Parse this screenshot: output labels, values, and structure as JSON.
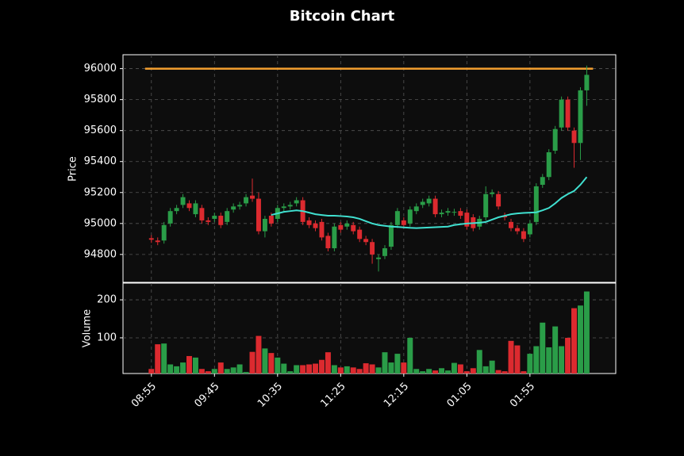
{
  "chart_data": {
    "type": "candlestick",
    "title": "Bitcoin Chart",
    "ylabel": "Price",
    "ylim": [
      94620,
      96090
    ],
    "yticks": [
      94800,
      95000,
      95200,
      95400,
      95600,
      95800,
      96000
    ],
    "xlim": [
      -4.5,
      73.6
    ],
    "xticks": [
      {
        "value": 0,
        "label": "08:55"
      },
      {
        "value": 10,
        "label": "09:45"
      },
      {
        "value": 20,
        "label": "10:35"
      },
      {
        "value": 30,
        "label": "11:25"
      },
      {
        "value": 40,
        "label": "12:15"
      },
      {
        "value": 50,
        "label": "01:05"
      },
      {
        "value": 60,
        "label": "01:55"
      }
    ],
    "grid": true,
    "up_color": "#2a9d48",
    "down_color": "#dc2a2f",
    "open": [
      94905,
      94890,
      94890,
      95000,
      95080,
      95120,
      95130,
      95060,
      95100,
      95020,
      95030,
      95050,
      95010,
      95090,
      95110,
      95130,
      95180,
      95160,
      94950,
      95050,
      95030,
      95100,
      95110,
      95130,
      95150,
      95020,
      95000,
      95010,
      94920,
      94840,
      94990,
      94980,
      94990,
      94960,
      94900,
      94880,
      94770,
      94790,
      94850,
      94990,
      95020,
      95000,
      95080,
      95120,
      95130,
      95160,
      95060,
      95070,
      95070,
      95080,
      95070,
      95040,
      94980,
      95040,
      95190,
      95190,
      95050,
      95010,
      94970,
      94950,
      94930,
      95010,
      95250,
      95300,
      95470,
      95620,
      95800,
      95600,
      95520,
      95860
    ],
    "high": [
      94925,
      94910,
      95010,
      95100,
      95120,
      95190,
      95150,
      95150,
      95120,
      95040,
      95070,
      95070,
      95100,
      95130,
      95140,
      95190,
      95290,
      95200,
      95050,
      95070,
      95120,
      95130,
      95140,
      95170,
      95170,
      95040,
      95020,
      95030,
      94940,
      95000,
      95010,
      95020,
      95010,
      94980,
      94920,
      94900,
      94800,
      94860,
      95010,
      95100,
      95040,
      95110,
      95130,
      95160,
      95180,
      95180,
      95090,
      95100,
      95095,
      95100,
      95090,
      95060,
      95050,
      95240,
      95220,
      95210,
      95070,
      95030,
      94990,
      94970,
      95020,
      95260,
      95320,
      95480,
      95630,
      95820,
      95820,
      95620,
      95880,
      96020
    ],
    "low": [
      94875,
      94860,
      94870,
      94980,
      95060,
      95100,
      95080,
      95040,
      95000,
      94990,
      95010,
      94970,
      94990,
      95070,
      95090,
      95110,
      95140,
      94930,
      94910,
      94980,
      95010,
      95080,
      95090,
      95110,
      94990,
      94970,
      94950,
      94890,
      94820,
      94820,
      94940,
      94960,
      94930,
      94880,
      94860,
      94740,
      94690,
      94770,
      94830,
      94970,
      94970,
      94980,
      95060,
      95100,
      95110,
      95040,
      95040,
      95050,
      95050,
      95030,
      94960,
      94950,
      94960,
      95020,
      95170,
      95090,
      95020,
      94950,
      94930,
      94880,
      94910,
      94990,
      95230,
      95280,
      95450,
      95600,
      95600,
      95360,
      95410,
      95760
    ],
    "close": [
      94895,
      94880,
      94990,
      95080,
      95100,
      95170,
      95100,
      95130,
      95020,
      95010,
      95050,
      94990,
      95080,
      95110,
      95120,
      95170,
      95160,
      94950,
      95030,
      95000,
      95100,
      95110,
      95120,
      95150,
      95010,
      94990,
      94970,
      94910,
      94840,
      94980,
      94960,
      95000,
      94950,
      94900,
      94880,
      94800,
      94780,
      94840,
      94990,
      95080,
      94990,
      95090,
      95110,
      95140,
      95160,
      95060,
      95070,
      95080,
      95075,
      95050,
      94980,
      94970,
      95030,
      95190,
      95200,
      95110,
      95040,
      94970,
      94950,
      94900,
      95000,
      95240,
      95300,
      95460,
      95610,
      95800,
      95620,
      95520,
      95860,
      95960
    ],
    "ma": {
      "color": "#40e0d0",
      "values": [
        null,
        null,
        null,
        null,
        null,
        null,
        null,
        null,
        null,
        null,
        null,
        null,
        null,
        null,
        null,
        null,
        null,
        null,
        null,
        95055,
        95065,
        95075,
        95080,
        95085,
        95080,
        95070,
        95060,
        95055,
        95050,
        95050,
        95048,
        95045,
        95040,
        95030,
        95015,
        95000,
        94990,
        94985,
        94980,
        94978,
        94975,
        94972,
        94970,
        94972,
        94974,
        94976,
        94978,
        94980,
        94990,
        94995,
        95000,
        95002,
        95005,
        95010,
        95025,
        95040,
        95050,
        95060,
        95065,
        95068,
        95070,
        95072,
        95085,
        95100,
        95130,
        95165,
        95190,
        95210,
        95250,
        95300
      ]
    },
    "hline": {
      "value": 96000,
      "color": "#f5a030"
    },
    "volume": {
      "ylabel": "Volume",
      "ylim": [
        6,
        244
      ],
      "yticks": [
        100,
        200
      ],
      "values": [
        18,
        83,
        85,
        30,
        25,
        35,
        52,
        48,
        18,
        12,
        18,
        35,
        18,
        22,
        30,
        10,
        63,
        105,
        72,
        60,
        48,
        32,
        12,
        28,
        28,
        30,
        32,
        42,
        62,
        28,
        22,
        25,
        22,
        18,
        33,
        30,
        22,
        62,
        35,
        58,
        35,
        100,
        18,
        12,
        18,
        14,
        20,
        14,
        34,
        30,
        12,
        20,
        68,
        25,
        40,
        15,
        12,
        92,
        80,
        12,
        58,
        78,
        140,
        75,
        130,
        78,
        100,
        178,
        185,
        222
      ]
    }
  }
}
